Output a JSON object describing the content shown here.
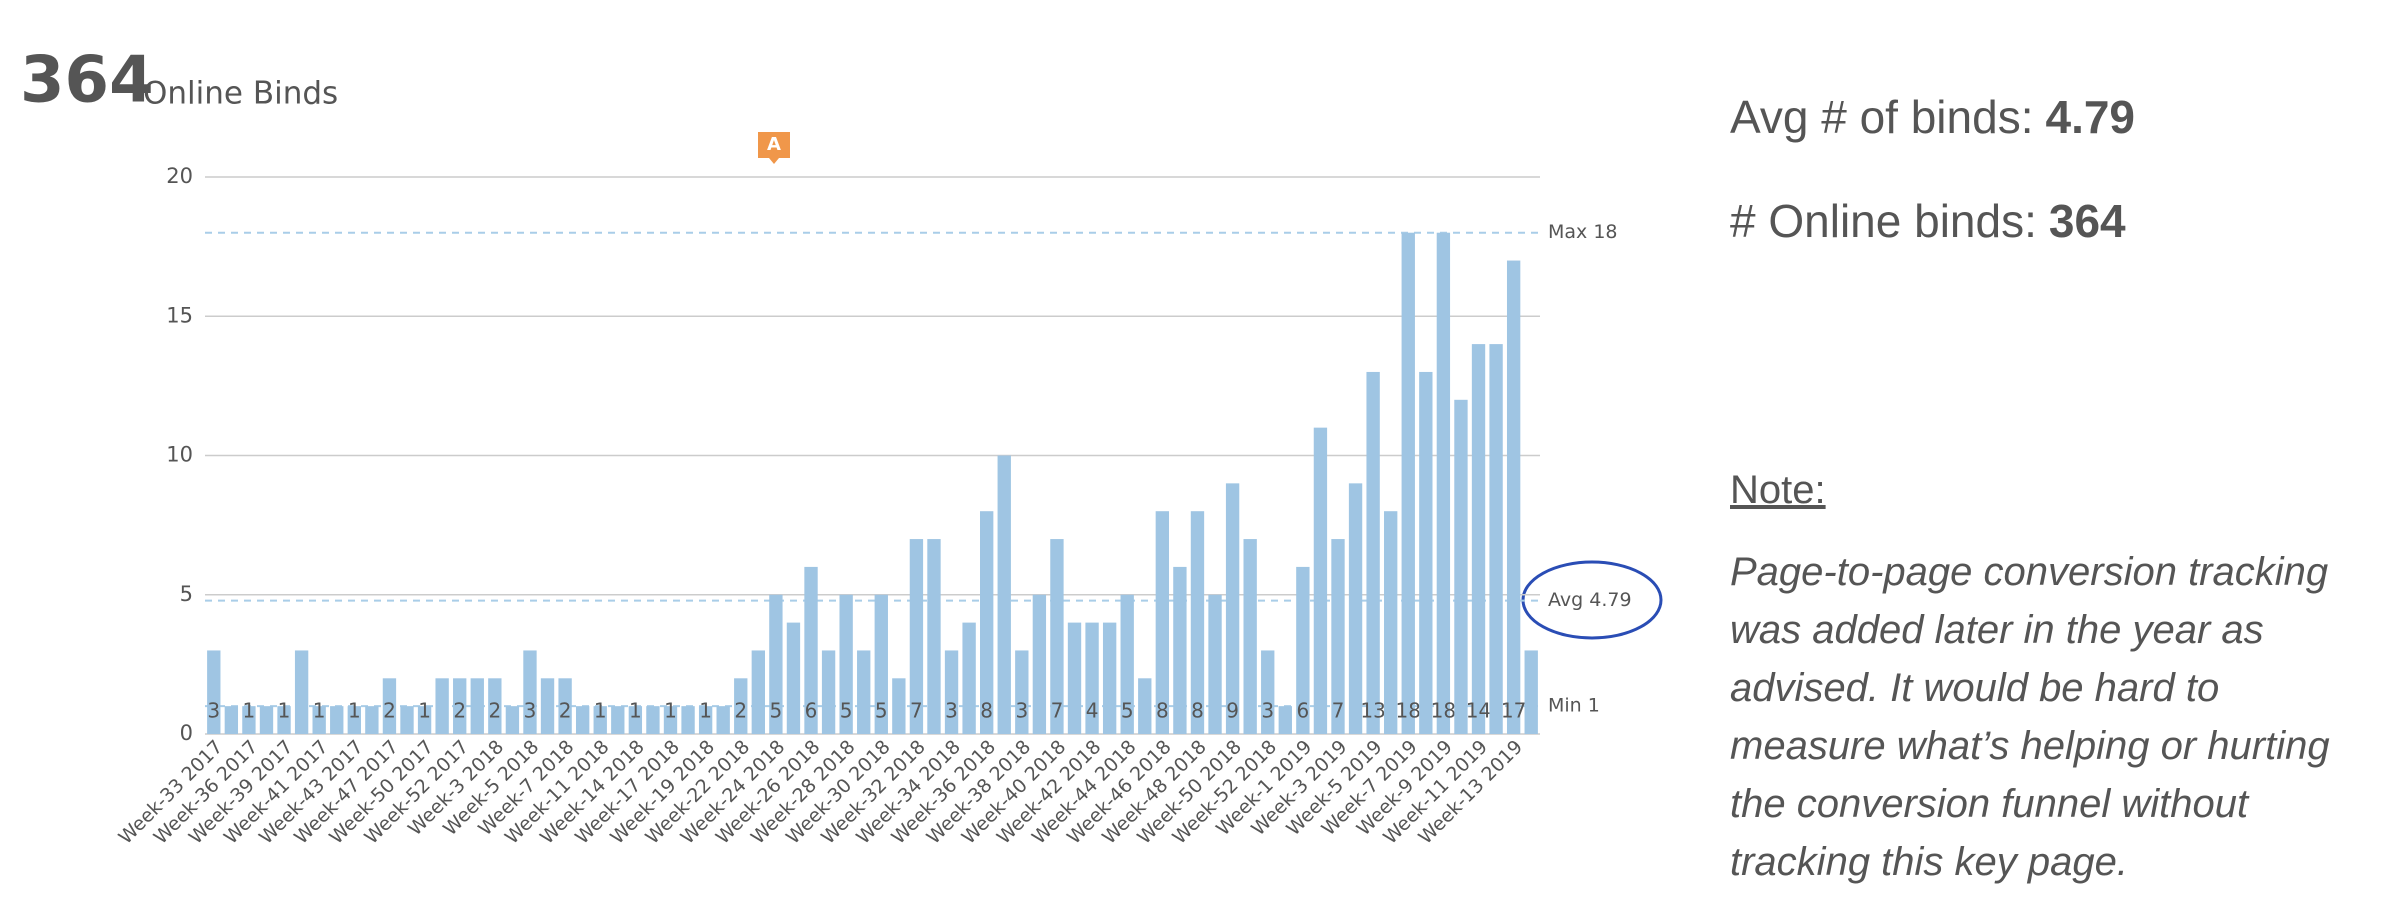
{
  "header": {
    "total": 364,
    "label": "Online Binds"
  },
  "chart_data": {
    "type": "bar",
    "categories": [
      "Week-33 2017",
      null,
      "Week-36 2017",
      null,
      "Week-39 2017",
      null,
      "Week-41 2017",
      null,
      "Week-43 2017",
      null,
      "Week-47 2017",
      null,
      "Week-50 2017",
      null,
      "Week-52 2017",
      null,
      "Week-3 2018",
      null,
      "Week-5 2018",
      null,
      "Week-7 2018",
      null,
      "Week-11 2018",
      null,
      "Week-14 2018",
      null,
      "Week-17 2018",
      null,
      "Week-19 2018",
      null,
      "Week-22 2018",
      null,
      "Week-24 2018",
      null,
      "Week-26 2018",
      null,
      "Week-28 2018",
      null,
      "Week-30 2018",
      null,
      "Week-32 2018",
      null,
      "Week-34 2018",
      null,
      "Week-36 2018",
      null,
      "Week-38 2018",
      null,
      "Week-40 2018",
      null,
      "Week-42 2018",
      null,
      "Week-44 2018",
      null,
      "Week-46 2018",
      null,
      "Week-48 2018",
      null,
      "Week-50 2018",
      null,
      "Week-52 2018",
      null,
      "Week-1 2019",
      null,
      "Week-3 2019",
      null,
      "Week-5 2019",
      null,
      "Week-7 2019",
      null,
      "Week-9 2019",
      null,
      "Week-11 2019",
      null,
      "Week-13 2019",
      null
    ],
    "values": [
      3,
      1,
      1,
      1,
      1,
      3,
      1,
      1,
      1,
      1,
      2,
      1,
      1,
      2,
      2,
      2,
      2,
      1,
      3,
      2,
      2,
      1,
      1,
      1,
      1,
      1,
      1,
      1,
      1,
      1,
      2,
      3,
      5,
      4,
      6,
      3,
      5,
      3,
      5,
      2,
      7,
      7,
      3,
      4,
      8,
      10,
      3,
      5,
      7,
      4,
      4,
      4,
      5,
      2,
      8,
      6,
      8,
      5,
      9,
      7,
      3,
      1,
      6,
      11,
      7,
      9,
      13,
      8,
      18,
      13,
      18,
      12,
      14,
      14,
      17,
      3
    ],
    "color": "#9fc5e3",
    "ylim": [
      0,
      20
    ],
    "yticks": [
      0,
      5,
      10,
      15,
      20
    ],
    "grid": true,
    "annotation": "A",
    "reference_lines": [
      {
        "value": 18,
        "label": "Max 18"
      },
      {
        "value": 4.79,
        "label": "Avg 4.79"
      },
      {
        "value": 1,
        "label": "Min 1"
      }
    ]
  },
  "summary": {
    "avg_label": "Avg # of binds:",
    "avg": 4.79,
    "total_label": "# Online binds:",
    "total": 364
  },
  "note": {
    "heading": "Note:",
    "text": "Page-to-page conversion tracking was added later in the year as advised. It would be hard to measure what’s helping or hurting the conversion funnel without tracking this key page."
  }
}
